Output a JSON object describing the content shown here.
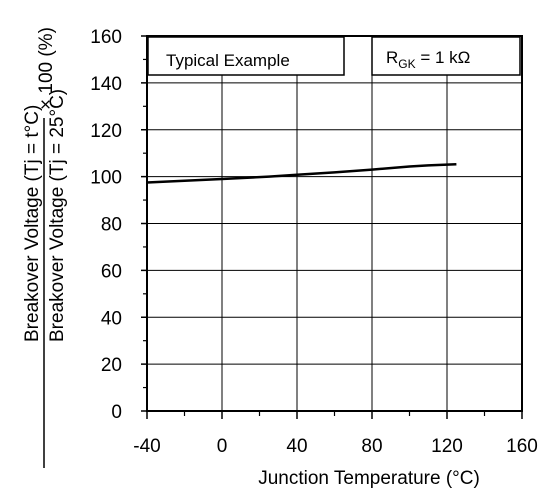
{
  "chart_data": {
    "type": "line",
    "title": "",
    "xlabel": "Junction Temperature  (°C)",
    "ylabel": {
      "numerator": "Breakover Voltage (Tj = t°C)",
      "denominator": "Breakover Voltage (Tj = 25°C)",
      "suffix": "× 100 (%)"
    },
    "xlim": [
      -40,
      160
    ],
    "ylim": [
      0,
      160
    ],
    "xticks": [
      "-40",
      "0",
      "40",
      "80",
      "120",
      "160"
    ],
    "yticks": [
      "0",
      "20",
      "40",
      "60",
      "80",
      "100",
      "120",
      "140",
      "160"
    ],
    "grid": true,
    "annotations": {
      "left": "Typical Example",
      "right": {
        "main": "R",
        "sub": "GK",
        "rest": " = 1 kΩ"
      }
    },
    "series": [
      {
        "x": [
          -40,
          -20,
          0,
          25,
          40,
          60,
          80,
          100,
          110,
          125
        ],
        "y": [
          97.5,
          98.2,
          99.0,
          100.0,
          100.8,
          101.8,
          103.0,
          104.3,
          104.8,
          105.3
        ]
      }
    ]
  }
}
